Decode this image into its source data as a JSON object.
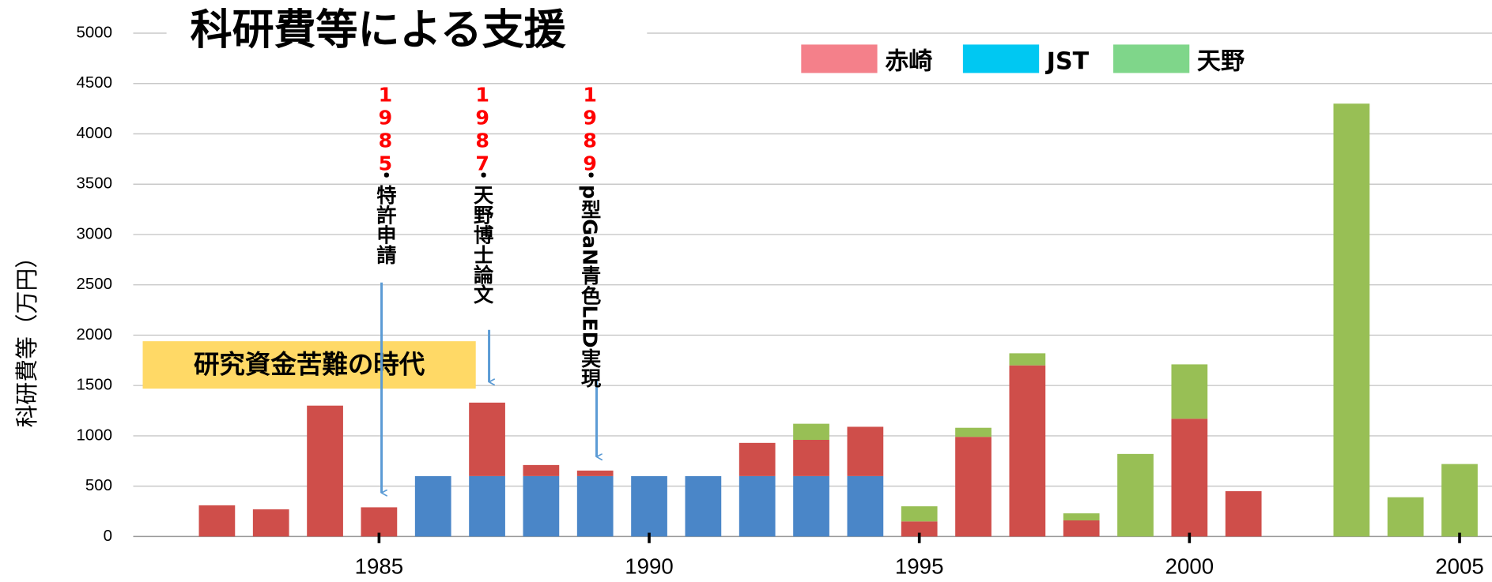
{
  "chart_data": {
    "type": "stacked_bar",
    "title": "科研費等による支援",
    "ylabel": "科研費等（万円）",
    "x": [
      1982,
      1983,
      1984,
      1985,
      1986,
      1987,
      1988,
      1989,
      1990,
      1991,
      1992,
      1993,
      1994,
      1995,
      1996,
      1997,
      1998,
      1999,
      2000,
      2001,
      2002,
      2003,
      2004,
      2005
    ],
    "series": [
      {
        "name": "JST",
        "color": "#4a86c8",
        "legend_color": "#00c8f2",
        "values": [
          null,
          null,
          null,
          null,
          600,
          600,
          600,
          600,
          600,
          600,
          600,
          600,
          600,
          null,
          null,
          null,
          null,
          null,
          null,
          null,
          null,
          null,
          null,
          null
        ]
      },
      {
        "name": "赤崎",
        "color": "#cf4e4a",
        "legend_color": "#f4808a",
        "values": [
          310,
          270,
          1300,
          290,
          null,
          730,
          110,
          55,
          null,
          null,
          330,
          360,
          490,
          150,
          990,
          1700,
          160,
          null,
          1170,
          450,
          null,
          null,
          null,
          null
        ]
      },
      {
        "name": "天野",
        "color": "#98bf55",
        "legend_color": "#7fd68a",
        "values": [
          null,
          null,
          null,
          null,
          null,
          null,
          null,
          null,
          null,
          null,
          null,
          160,
          null,
          150,
          90,
          120,
          70,
          820,
          540,
          null,
          null,
          4300,
          390,
          720
        ]
      }
    ],
    "legend_order": [
      1,
      0,
      2
    ],
    "xlim": [
      1980.45,
      2005.6
    ],
    "xticks": [
      1985,
      1990,
      1995,
      2000,
      2005
    ],
    "ylim": [
      0,
      5000
    ],
    "yticks": [
      0,
      500,
      1000,
      1500,
      2000,
      2500,
      3000,
      3500,
      4000,
      4500,
      5000
    ],
    "grid": true,
    "annotations": [
      {
        "year": "1985",
        "text": "・特許申請"
      },
      {
        "year": "1987",
        "text": "・天野博士論文"
      },
      {
        "year": "1989",
        "text": "・p型GaN青色LED実現"
      }
    ],
    "period_label": "研究資金苦難の時代"
  }
}
